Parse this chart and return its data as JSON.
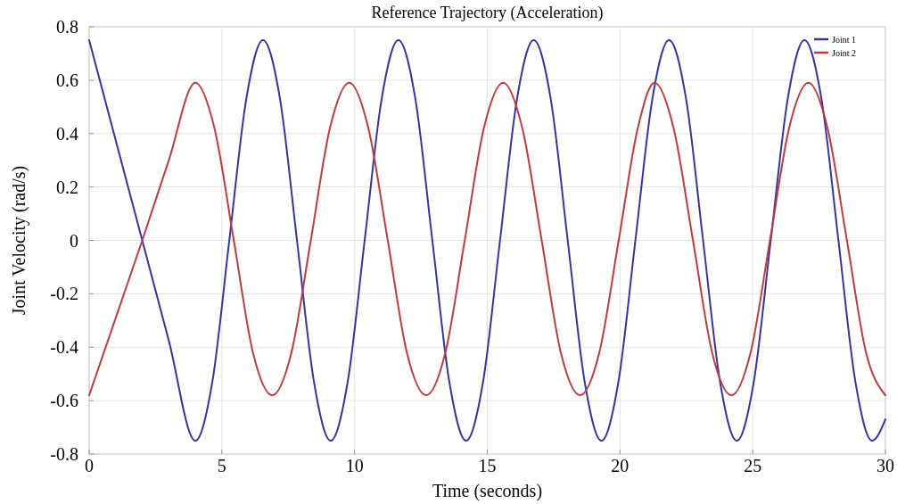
{
  "chart_data": {
    "type": "line",
    "title": "Reference Trajectory (Acceleration)",
    "xlabel": "Time (seconds)",
    "ylabel": "Joint Velocity  (rad/s)",
    "xlim": [
      0,
      30
    ],
    "xticks": [
      0,
      5,
      10,
      15,
      20,
      25,
      30
    ],
    "ylim": [
      -0.8,
      0.8
    ],
    "yticks": [
      -0.8,
      -0.6,
      -0.4,
      -0.2,
      0,
      0.2,
      0.4,
      0.6,
      0.8
    ],
    "grid": true,
    "legend": "top right",
    "line_style": "solid",
    "marker": "none",
    "series": [
      {
        "name": "Joint 1",
        "color": "#3434a4",
        "x": [
          0,
          1.0,
          2.0,
          3.0,
          4.0,
          4.64,
          5.28,
          5.92,
          6.55,
          7.19,
          7.83,
          8.47,
          9.1,
          9.74,
          10.38,
          11.02,
          11.65,
          12.29,
          12.93,
          13.57,
          14.2,
          14.84,
          15.48,
          16.12,
          16.75,
          17.39,
          18.03,
          18.67,
          19.3,
          19.94,
          20.58,
          21.22,
          21.85,
          22.49,
          23.13,
          23.77,
          24.4,
          25.04,
          25.68,
          26.32,
          26.95,
          27.59,
          28.23,
          28.87,
          29.5,
          30
        ],
        "values": [
          0.75,
          0.375,
          0,
          -0.375,
          -0.75,
          -0.53,
          0,
          0.53,
          0.75,
          0.53,
          0,
          -0.53,
          -0.75,
          -0.53,
          0,
          0.53,
          0.75,
          0.53,
          0,
          -0.53,
          -0.75,
          -0.53,
          0,
          0.53,
          0.75,
          0.53,
          0,
          -0.53,
          -0.75,
          -0.53,
          0,
          0.53,
          0.75,
          0.53,
          0,
          -0.53,
          -0.75,
          -0.53,
          0,
          0.53,
          0.75,
          0.53,
          0,
          -0.53,
          -0.75,
          -0.67
        ]
      },
      {
        "name": "Joint 2",
        "color": "#c23a3a",
        "x": [
          0,
          1.0,
          2.0,
          3.0,
          4.0,
          4.72,
          5.45,
          6.17,
          6.9,
          7.62,
          8.35,
          9.07,
          9.8,
          10.52,
          11.25,
          11.97,
          12.7,
          13.42,
          14.15,
          14.87,
          15.6,
          16.32,
          17.05,
          17.77,
          18.5,
          19.22,
          19.95,
          20.67,
          21.3,
          22.02,
          22.75,
          23.47,
          24.2,
          24.92,
          25.65,
          26.37,
          27.1,
          27.82,
          28.55,
          29.27,
          30
        ],
        "values": [
          -0.58,
          -0.29,
          0,
          0.3,
          0.59,
          0.42,
          0,
          -0.42,
          -0.58,
          -0.42,
          0,
          0.42,
          0.59,
          0.42,
          0,
          -0.42,
          -0.58,
          -0.42,
          0,
          0.42,
          0.59,
          0.42,
          0,
          -0.42,
          -0.58,
          -0.42,
          0,
          0.42,
          0.59,
          0.42,
          0,
          -0.42,
          -0.58,
          -0.42,
          0,
          0.42,
          0.59,
          0.42,
          0,
          -0.42,
          -0.58
        ]
      }
    ]
  }
}
